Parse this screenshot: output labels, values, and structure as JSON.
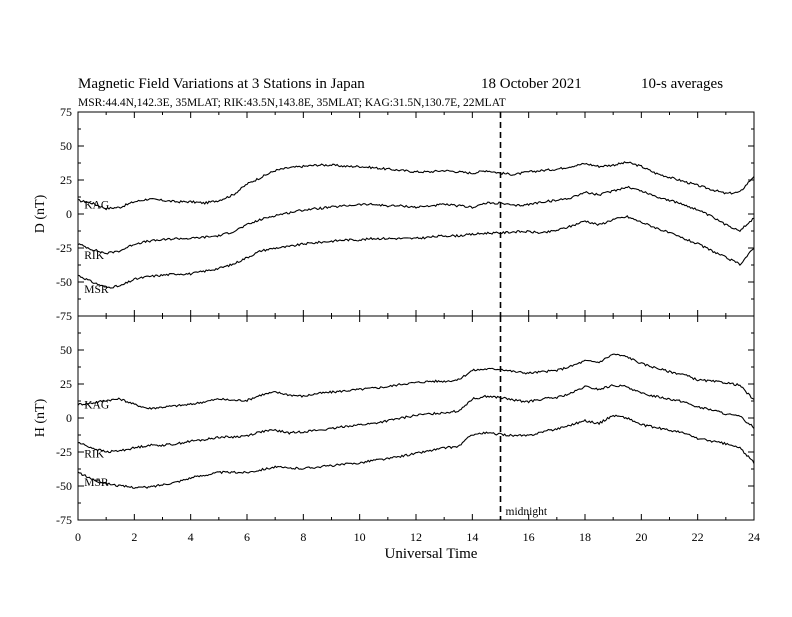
{
  "chart_data": {
    "type": "line",
    "title": "Magnetic Field Variations at 3 Stations in Japan",
    "date": "18 October 2021",
    "averaging": "10-s averages",
    "subtitle": "MSR:44.4N,142.3E, 35MLAT;  RIK:43.5N,143.8E, 35MLAT;  KAG:31.5N,130.7E, 22MLAT",
    "xlabel": "Universal Time",
    "xlim": [
      0,
      24
    ],
    "xticks": [
      "0",
      "2",
      "4",
      "6",
      "8",
      "10",
      "12",
      "14",
      "16",
      "18",
      "20",
      "22",
      "24"
    ],
    "grid": false,
    "annotation": {
      "label": "midnight",
      "x": 15
    },
    "panels": [
      {
        "ylabel": "D (nT)",
        "ylim": [
          -75,
          75
        ],
        "yticks": [
          "75",
          "50",
          "25",
          "0",
          "-25",
          "-50",
          "-75"
        ],
        "series": [
          {
            "name": "KAG",
            "label_x": 0.15,
            "label_y": 7,
            "x": [
              0,
              0.5,
              1,
              1.5,
              2,
              2.5,
              3,
              3.5,
              4,
              4.5,
              5,
              5.5,
              6,
              6.5,
              7,
              7.5,
              8,
              8.5,
              9,
              9.5,
              10,
              10.5,
              11,
              11.5,
              12,
              12.5,
              13,
              13.5,
              14,
              14.5,
              15,
              15.5,
              16,
              16.5,
              17,
              17.5,
              18,
              18.5,
              19,
              19.5,
              20,
              20.5,
              21,
              21.5,
              22,
              22.5,
              23,
              23.5,
              24
            ],
            "y": [
              10,
              8,
              4,
              5,
              9,
              11,
              10,
              9,
              9,
              8,
              10,
              14,
              22,
              27,
              32,
              34,
              35,
              36,
              36,
              35,
              35,
              34,
              33,
              32,
              31,
              31,
              32,
              31,
              30,
              32,
              30,
              29,
              31,
              32,
              33,
              35,
              37,
              35,
              36,
              38,
              35,
              30,
              27,
              24,
              21,
              18,
              15,
              16,
              28
            ]
          },
          {
            "name": "RIK",
            "label_x": 0.15,
            "label_y": -30,
            "x": [
              0,
              0.5,
              1,
              1.5,
              2,
              2.5,
              3,
              3.5,
              4,
              4.5,
              5,
              5.5,
              6,
              6.5,
              7,
              7.5,
              8,
              8.5,
              9,
              9.5,
              10,
              10.5,
              11,
              11.5,
              12,
              12.5,
              13,
              13.5,
              14,
              14.5,
              15,
              15.5,
              16,
              16.5,
              17,
              17.5,
              18,
              18.5,
              19,
              19.5,
              20,
              20.5,
              21,
              21.5,
              22,
              22.5,
              23,
              23.5,
              24
            ],
            "y": [
              -22,
              -26,
              -29,
              -27,
              -22,
              -20,
              -19,
              -18,
              -18,
              -17,
              -16,
              -13,
              -8,
              -4,
              -1,
              1,
              3,
              4,
              5,
              6,
              7,
              7,
              6,
              6,
              5,
              6,
              7,
              6,
              5,
              8,
              8,
              6,
              7,
              9,
              10,
              12,
              16,
              14,
              17,
              20,
              17,
              13,
              10,
              7,
              3,
              -2,
              -8,
              -12,
              -3
            ]
          },
          {
            "name": "MSR",
            "label_x": 0.15,
            "label_y": -55,
            "x": [
              0,
              0.5,
              1,
              1.5,
              2,
              2.5,
              3,
              3.5,
              4,
              4.5,
              5,
              5.5,
              6,
              6.5,
              7,
              7.5,
              8,
              8.5,
              9,
              9.5,
              10,
              10.5,
              11,
              11.5,
              12,
              12.5,
              13,
              13.5,
              14,
              14.5,
              15,
              15.5,
              16,
              16.5,
              17,
              17.5,
              18,
              18.5,
              19,
              19.5,
              20,
              20.5,
              21,
              21.5,
              22,
              22.5,
              23,
              23.5,
              24
            ],
            "y": [
              -45,
              -50,
              -54,
              -53,
              -48,
              -46,
              -45,
              -44,
              -44,
              -42,
              -40,
              -37,
              -32,
              -27,
              -25,
              -24,
              -22,
              -21,
              -20,
              -19,
              -19,
              -18,
              -18,
              -18,
              -18,
              -17,
              -16,
              -16,
              -15,
              -14,
              -14,
              -13,
              -13,
              -14,
              -12,
              -9,
              -5,
              -8,
              -4,
              -2,
              -6,
              -10,
              -14,
              -18,
              -22,
              -27,
              -32,
              -37,
              -25
            ]
          }
        ]
      },
      {
        "ylabel": "H (nT)",
        "ylim": [
          -75,
          75
        ],
        "yticks": [
          "75",
          "50",
          "25",
          "0",
          "-25",
          "-50",
          "-75"
        ],
        "series": [
          {
            "name": "KAG",
            "label_x": 0.15,
            "label_y": 10,
            "x": [
              0,
              0.5,
              1,
              1.5,
              2,
              2.5,
              3,
              3.5,
              4,
              4.5,
              5,
              5.5,
              6,
              6.5,
              7,
              7.5,
              8,
              8.5,
              9,
              9.5,
              10,
              10.5,
              11,
              11.5,
              12,
              12.5,
              13,
              13.5,
              14,
              14.5,
              15,
              15.5,
              16,
              16.5,
              17,
              17.5,
              18,
              18.5,
              19,
              19.5,
              20,
              20.5,
              21,
              21.5,
              22,
              22.5,
              23,
              23.5,
              24
            ],
            "y": [
              10,
              11,
              13,
              14,
              10,
              7,
              8,
              9,
              10,
              12,
              14,
              13,
              13,
              17,
              19,
              17,
              16,
              18,
              19,
              20,
              21,
              22,
              23,
              25,
              26,
              27,
              27,
              28,
              35,
              36,
              36,
              34,
              33,
              34,
              35,
              38,
              42,
              41,
              47,
              45,
              40,
              37,
              34,
              32,
              28,
              27,
              26,
              24,
              13
            ]
          },
          {
            "name": "RIK",
            "label_x": 0.15,
            "label_y": -26,
            "x": [
              0,
              0.5,
              1,
              1.5,
              2,
              2.5,
              3,
              3.5,
              4,
              4.5,
              5,
              5.5,
              6,
              6.5,
              7,
              7.5,
              8,
              8.5,
              9,
              9.5,
              10,
              10.5,
              11,
              11.5,
              12,
              12.5,
              13,
              13.5,
              14,
              14.5,
              15,
              15.5,
              16,
              16.5,
              17,
              17.5,
              18,
              18.5,
              19,
              19.5,
              20,
              20.5,
              21,
              21.5,
              22,
              22.5,
              23,
              23.5,
              24
            ],
            "y": [
              -18,
              -22,
              -25,
              -24,
              -22,
              -20,
              -20,
              -19,
              -17,
              -16,
              -14,
              -14,
              -13,
              -10,
              -9,
              -11,
              -10,
              -9,
              -8,
              -6,
              -5,
              -4,
              -2,
              0,
              2,
              3,
              4,
              5,
              14,
              16,
              15,
              13,
              12,
              14,
              15,
              18,
              23,
              21,
              24,
              23,
              18,
              16,
              14,
              12,
              8,
              6,
              3,
              1,
              -7
            ]
          },
          {
            "name": "MSR",
            "label_x": 0.15,
            "label_y": -47,
            "x": [
              0,
              0.5,
              1,
              1.5,
              2,
              2.5,
              3,
              3.5,
              4,
              4.5,
              5,
              5.5,
              6,
              6.5,
              7,
              7.5,
              8,
              8.5,
              9,
              9.5,
              10,
              10.5,
              11,
              11.5,
              12,
              12.5,
              13,
              13.5,
              14,
              14.5,
              15,
              15.5,
              16,
              16.5,
              17,
              17.5,
              18,
              18.5,
              19,
              19.5,
              20,
              20.5,
              21,
              21.5,
              22,
              22.5,
              23,
              23.5,
              24
            ],
            "y": [
              -40,
              -45,
              -48,
              -50,
              -51,
              -51,
              -49,
              -47,
              -44,
              -42,
              -40,
              -40,
              -40,
              -38,
              -36,
              -37,
              -37,
              -36,
              -35,
              -34,
              -33,
              -31,
              -30,
              -28,
              -26,
              -24,
              -22,
              -21,
              -12,
              -11,
              -12,
              -13,
              -13,
              -10,
              -8,
              -5,
              -2,
              -4,
              2,
              0,
              -5,
              -7,
              -9,
              -11,
              -15,
              -17,
              -19,
              -22,
              -33
            ]
          }
        ]
      }
    ]
  }
}
